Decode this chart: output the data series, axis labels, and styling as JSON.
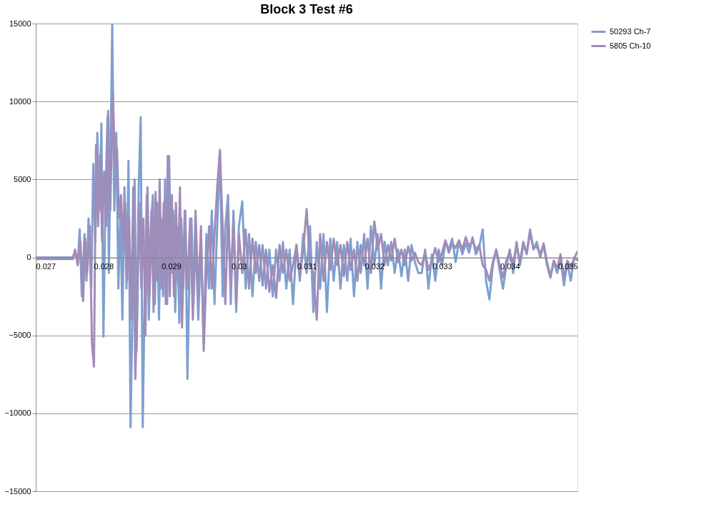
{
  "chart_data": {
    "type": "line",
    "title": "Block 3 Test #6",
    "xlim": [
      0.027,
      0.035
    ],
    "xticks": [
      0.027,
      0.028,
      0.029,
      0.03,
      0.031,
      0.032,
      0.033,
      0.034,
      0.035
    ],
    "ylim": [
      -15000,
      15000
    ],
    "yticks": [
      -15000,
      -10000,
      -5000,
      0,
      5000,
      10000,
      15000
    ],
    "grid": "y",
    "legend": "right",
    "marker": "none",
    "line_style": "solid",
    "series": [
      {
        "name": "50293 Ch-7",
        "color": "#7f9fd0",
        "x": [
          0.027,
          0.0274,
          0.02755,
          0.02758,
          0.02762,
          0.02765,
          0.02768,
          0.02772,
          0.02775,
          0.02778,
          0.02782,
          0.02785,
          0.02788,
          0.02791,
          0.02794,
          0.02797,
          0.028,
          0.02803,
          0.02806,
          0.02808,
          0.0281,
          0.02813,
          0.02816,
          0.02819,
          0.02822,
          0.02825,
          0.02828,
          0.02831,
          0.02834,
          0.02837,
          0.0284,
          0.02843,
          0.02846,
          0.02849,
          0.02852,
          0.02855,
          0.02858,
          0.02861,
          0.02864,
          0.02867,
          0.0287,
          0.02873,
          0.02876,
          0.02879,
          0.02882,
          0.02885,
          0.02888,
          0.02891,
          0.02894,
          0.02897,
          0.029,
          0.02903,
          0.02906,
          0.02909,
          0.02912,
          0.02915,
          0.02918,
          0.02921,
          0.02924,
          0.02927,
          0.0293,
          0.02933,
          0.02936,
          0.0294,
          0.02944,
          0.02948,
          0.02952,
          0.02956,
          0.0296,
          0.02964,
          0.02968,
          0.02972,
          0.02976,
          0.0298,
          0.02984,
          0.02988,
          0.02992,
          0.02996,
          0.03,
          0.03005,
          0.0301,
          0.03015,
          0.0302,
          0.03025,
          0.0303,
          0.03035,
          0.0304,
          0.03045,
          0.0305,
          0.03055,
          0.0306,
          0.03065,
          0.0307,
          0.03075,
          0.0308,
          0.03085,
          0.0309,
          0.03095,
          0.031,
          0.03105,
          0.0311,
          0.03115,
          0.0312,
          0.03125,
          0.0313,
          0.03135,
          0.0314,
          0.03145,
          0.0315,
          0.03155,
          0.0316,
          0.03165,
          0.0317,
          0.03175,
          0.0318,
          0.03185,
          0.0319,
          0.03195,
          0.032,
          0.03205,
          0.0321,
          0.03215,
          0.0322,
          0.03225,
          0.0323,
          0.03235,
          0.0324,
          0.03245,
          0.0325,
          0.03255,
          0.0326,
          0.03265,
          0.0327,
          0.03275,
          0.0328,
          0.03285,
          0.0329,
          0.03295,
          0.033,
          0.03305,
          0.0331,
          0.03315,
          0.0332,
          0.03325,
          0.0333,
          0.03335,
          0.0334,
          0.03345,
          0.0335,
          0.03355,
          0.0336,
          0.03365,
          0.0337,
          0.03375,
          0.0338,
          0.03385,
          0.0339,
          0.03395,
          0.034,
          0.03405,
          0.0341,
          0.03415,
          0.0342,
          0.03425,
          0.0343,
          0.03435,
          0.0344,
          0.03445,
          0.0345,
          0.03455,
          0.0346,
          0.03465,
          0.0347,
          0.03475,
          0.0348,
          0.03485,
          0.0349,
          0.03495,
          0.035
        ],
        "values": [
          0,
          0,
          0,
          400,
          -300,
          1800,
          -2500,
          1500,
          -1500,
          2500,
          -2000,
          6000,
          1000,
          8000,
          3000,
          8600,
          -5100,
          4000,
          9000,
          -1000,
          5000,
          15000,
          3000,
          8000,
          -2000,
          3000,
          -4000,
          4500,
          -2000,
          6200,
          -10900,
          -3000,
          5000,
          -6000,
          4500,
          9000,
          -10900,
          -2000,
          4000,
          -4000,
          2000,
          4000,
          -3000,
          3500,
          -4000,
          2500,
          -2500,
          5000,
          -3000,
          6500,
          -1000,
          3000,
          -3500,
          2000,
          -4200,
          2500,
          -2000,
          3000,
          -7800,
          -1000,
          2500,
          -3000,
          1500,
          -4000,
          1000,
          -5500,
          1500,
          -2000,
          3000,
          -3000,
          2000,
          6800,
          -2500,
          2000,
          4000,
          -3000,
          3000,
          -3500,
          2000,
          3600,
          -2000,
          1500,
          -2500,
          1000,
          -1500,
          800,
          -2000,
          500,
          -2500,
          500,
          -1500,
          1000,
          -2000,
          500,
          -3000,
          800,
          -1500,
          1500,
          -1000,
          2000,
          -3500,
          1000,
          -2000,
          1500,
          -3500,
          1200,
          -1500,
          1000,
          -2000,
          800,
          -1500,
          1200,
          -2500,
          1000,
          -1000,
          1500,
          -2000,
          2000,
          -500,
          1500,
          -2000,
          1000,
          -500,
          1000,
          -1000,
          500,
          -1200,
          500,
          -1500,
          800,
          -300,
          -1000,
          -1000,
          500,
          -2000,
          200,
          -1500,
          500,
          -500,
          1000,
          500,
          1200,
          -300,
          1000,
          200,
          900,
          300,
          1300,
          200,
          700,
          1800,
          -1500,
          -2700,
          -500,
          500,
          -800,
          -2000,
          -500,
          500,
          -1000,
          1000,
          -500,
          800,
          300,
          1800,
          500,
          1000,
          0,
          800,
          -500,
          -1300,
          -300,
          -1000,
          0,
          -1800,
          -300,
          -1500,
          0,
          -200
        ]
      },
      {
        "name": "5805 Ch-10",
        "color": "#a08cb8",
        "x": [
          0.027,
          0.02755,
          0.02758,
          0.02762,
          0.02766,
          0.0277,
          0.02773,
          0.02776,
          0.0278,
          0.02783,
          0.02786,
          0.02789,
          0.02792,
          0.02795,
          0.02798,
          0.02801,
          0.02804,
          0.02807,
          0.0281,
          0.02814,
          0.02817,
          0.0282,
          0.02823,
          0.02826,
          0.02829,
          0.02832,
          0.02835,
          0.02838,
          0.02841,
          0.02844,
          0.02847,
          0.0285,
          0.02853,
          0.02856,
          0.02859,
          0.02862,
          0.02865,
          0.02868,
          0.02871,
          0.02874,
          0.02877,
          0.0288,
          0.02883,
          0.02886,
          0.02889,
          0.02892,
          0.02895,
          0.02898,
          0.02901,
          0.02904,
          0.02907,
          0.0291,
          0.02913,
          0.02916,
          0.0292,
          0.02924,
          0.02928,
          0.02932,
          0.02936,
          0.0294,
          0.02944,
          0.02948,
          0.02952,
          0.02956,
          0.0296,
          0.02964,
          0.02968,
          0.02972,
          0.02976,
          0.0298,
          0.02984,
          0.02988,
          0.02992,
          0.02996,
          0.03,
          0.03005,
          0.0301,
          0.03015,
          0.0302,
          0.03025,
          0.0303,
          0.03035,
          0.0304,
          0.03045,
          0.0305,
          0.03055,
          0.0306,
          0.03065,
          0.0307,
          0.03075,
          0.0308,
          0.03085,
          0.0309,
          0.03095,
          0.031,
          0.03105,
          0.0311,
          0.03115,
          0.0312,
          0.03125,
          0.0313,
          0.03135,
          0.0314,
          0.03145,
          0.0315,
          0.03155,
          0.0316,
          0.03165,
          0.0317,
          0.03175,
          0.0318,
          0.03185,
          0.0319,
          0.03195,
          0.032,
          0.03205,
          0.0321,
          0.03215,
          0.0322,
          0.03225,
          0.0323,
          0.03235,
          0.0324,
          0.03245,
          0.0325,
          0.03255,
          0.0326,
          0.03265,
          0.0327,
          0.03275,
          0.0328,
          0.03285,
          0.0329,
          0.03295,
          0.033,
          0.03305,
          0.0331,
          0.03315,
          0.0332,
          0.03325,
          0.0333,
          0.03335,
          0.0334,
          0.03345,
          0.0335,
          0.03355,
          0.0336,
          0.03365,
          0.0337,
          0.03375,
          0.0338,
          0.03385,
          0.0339,
          0.03395,
          0.034,
          0.03405,
          0.0341,
          0.03415,
          0.0342,
          0.03425,
          0.0343,
          0.03435,
          0.0344,
          0.03445,
          0.0345,
          0.03455,
          0.0346,
          0.03465,
          0.0347,
          0.03475,
          0.0348,
          0.03485,
          0.0349,
          0.03495,
          0.035
        ],
        "values": [
          -100,
          -100,
          500,
          -500,
          1000,
          -2800,
          1200,
          -1000,
          2000,
          -5500,
          -7000,
          7200,
          2000,
          6500,
          1000,
          5500,
          2000,
          9400,
          3000,
          10500,
          6000,
          7000,
          2500,
          4000,
          500,
          3500,
          -1500,
          2500,
          -4000,
          4500,
          -7800,
          -3500,
          3500,
          -2000,
          2500,
          -5000,
          4500,
          -2500,
          3000,
          -3500,
          4200,
          -1500,
          5000,
          -2000,
          3500,
          -3000,
          6500,
          -2500,
          4000,
          -2500,
          3500,
          -1500,
          4500,
          -4500,
          3000,
          -2000,
          2500,
          -4000,
          3000,
          -2500,
          2000,
          -6000,
          -1000,
          2000,
          -2000,
          1500,
          4500,
          6900,
          2000,
          -3000,
          3000,
          -2000,
          2500,
          -3000,
          1500,
          -1000,
          1800,
          -2000,
          1200,
          -1000,
          800,
          -1800,
          500,
          -2200,
          -500,
          -2600,
          800,
          -1000,
          500,
          -1500,
          -500,
          800,
          -1200,
          500,
          3100,
          -500,
          -1000,
          -4000,
          1500,
          -1500,
          1000,
          -800,
          1200,
          -500,
          800,
          -1200,
          1000,
          -800,
          500,
          -1500,
          800,
          -500,
          1200,
          -1000,
          2300,
          500,
          1500,
          -500,
          800,
          -200,
          1200,
          -300,
          500,
          -500,
          700,
          -200,
          300,
          -300,
          -500,
          300,
          -800,
          -200,
          600,
          -300,
          300,
          1100,
          300,
          900,
          600,
          1100,
          500,
          1300,
          700,
          1100,
          500,
          800,
          -500,
          -800,
          -1500,
          -300,
          500,
          -500,
          -1300,
          -200,
          300,
          -400,
          800,
          -300,
          1000,
          200,
          1600,
          600,
          700,
          200,
          900,
          -300,
          -1200,
          -200,
          -700,
          200,
          -1300,
          -200,
          -600,
          -100,
          400
        ]
      }
    ]
  }
}
